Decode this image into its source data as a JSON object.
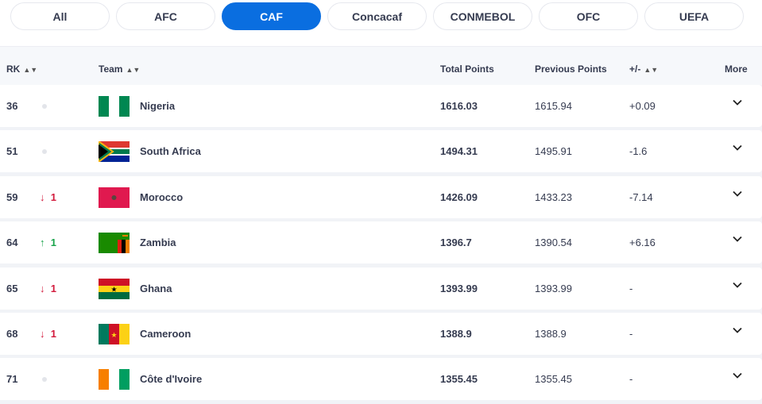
{
  "tabs": [
    {
      "label": "All"
    },
    {
      "label": "AFC"
    },
    {
      "label": "CAF",
      "active": true
    },
    {
      "label": "Concacaf"
    },
    {
      "label": "CONMEBOL"
    },
    {
      "label": "OFC"
    },
    {
      "label": "UEFA"
    }
  ],
  "columns": {
    "rk": "RK",
    "team": "Team",
    "total": "Total Points",
    "previous": "Previous Points",
    "diff": "+/-",
    "more": "More"
  },
  "rows": [
    {
      "rank": "36",
      "change": "",
      "dir": "none",
      "team": "Nigeria",
      "flag": "nigeria",
      "total": "1616.03",
      "previous": "1615.94",
      "diff": "+0.09"
    },
    {
      "rank": "51",
      "change": "",
      "dir": "none",
      "team": "South Africa",
      "flag": "south-africa",
      "total": "1494.31",
      "previous": "1495.91",
      "diff": "-1.6"
    },
    {
      "rank": "59",
      "change": "1",
      "dir": "down",
      "team": "Morocco",
      "flag": "morocco",
      "total": "1426.09",
      "previous": "1433.23",
      "diff": "-7.14"
    },
    {
      "rank": "64",
      "change": "1",
      "dir": "up",
      "team": "Zambia",
      "flag": "zambia",
      "total": "1396.7",
      "previous": "1390.54",
      "diff": "+6.16"
    },
    {
      "rank": "65",
      "change": "1",
      "dir": "down",
      "team": "Ghana",
      "flag": "ghana",
      "total": "1393.99",
      "previous": "1393.99",
      "diff": "-"
    },
    {
      "rank": "68",
      "change": "1",
      "dir": "down",
      "team": "Cameroon",
      "flag": "cameroon",
      "total": "1388.9",
      "previous": "1388.9",
      "diff": "-"
    },
    {
      "rank": "71",
      "change": "",
      "dir": "none",
      "team": "Côte d'Ivoire",
      "flag": "cote-divoire",
      "total": "1355.45",
      "previous": "1355.45",
      "diff": "-"
    }
  ],
  "colors": {
    "accent": "#0a6ee0",
    "down": "#d21a3c",
    "up": "#18a34a"
  }
}
